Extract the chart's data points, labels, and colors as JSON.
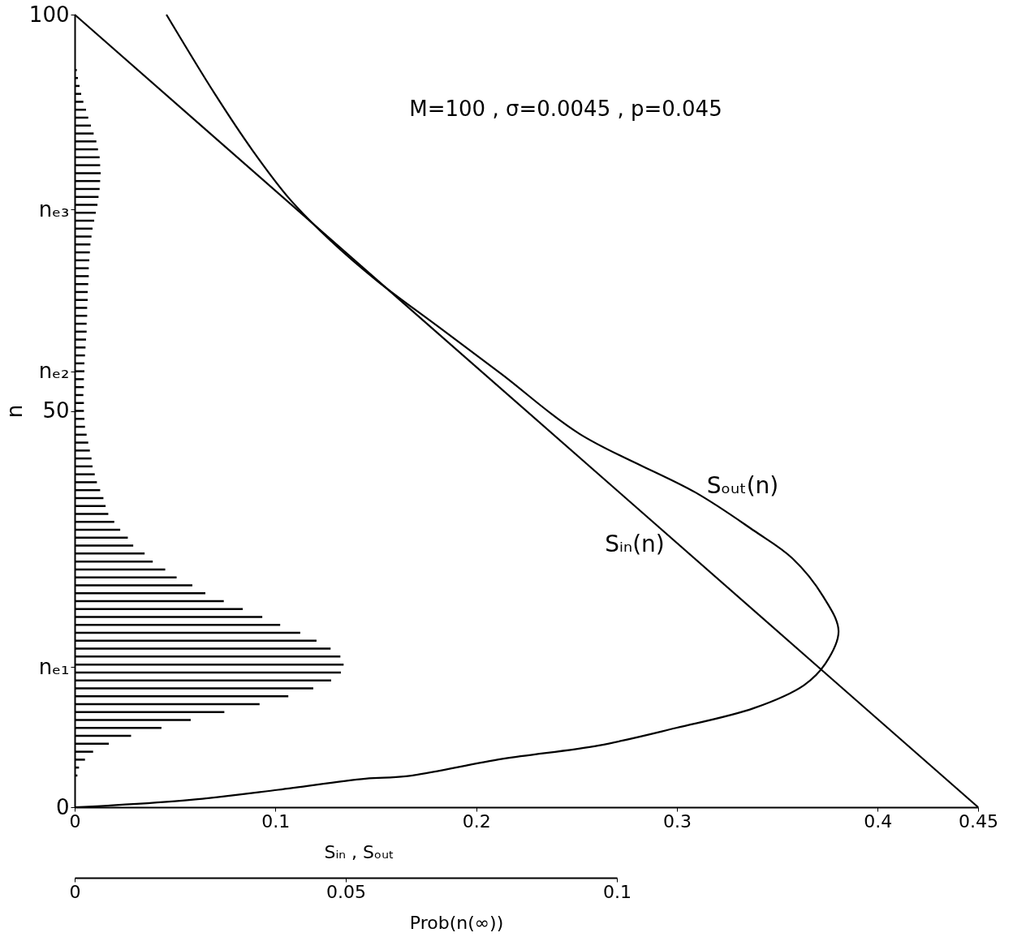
{
  "chart_data": {
    "type": "bar",
    "orientation": "horizontal",
    "xlabel": "Sᵢₙ , Sₒᵤₜ",
    "ylabel": "n",
    "x2label": "Prob(n(∞))",
    "annotations": [
      "M=100 , σ=0.0045 , p=0.045"
    ],
    "xlim": [
      0,
      0.45
    ],
    "xticks": [
      0,
      0.1,
      0.2,
      0.3,
      0.4,
      0.45
    ],
    "x2lim": [
      0,
      0.1
    ],
    "x2ticks": [
      0,
      0.05,
      0.1
    ],
    "ylim": [
      0,
      100
    ],
    "yticks": [
      0,
      {
        "value": 17.7,
        "label": "nₑ₁"
      },
      50,
      {
        "value": 55,
        "label": "nₑ₂"
      },
      {
        "value": 75.4,
        "label": "nₑ₃"
      },
      100
    ],
    "grid": false,
    "legend": false,
    "series": [
      {
        "name": "Sᵢₙ(n)",
        "type": "line",
        "color": "#000000",
        "x": [
          100,
          0
        ],
        "values": [
          0,
          0.45
        ]
      },
      {
        "name": "Sₒᵤₜ(n)",
        "type": "line",
        "color": "#000000",
        "values": [
          0,
          0.0166,
          0.057,
          0.1015,
          0.1448,
          0.165,
          0.2131,
          0.2612,
          0.2996,
          0.3383,
          0.3633,
          0.3739,
          0.3805,
          0.3728,
          0.3575,
          0.3383,
          0.3093,
          0.2515,
          0.2129,
          0.1818,
          0.1507,
          0.1274,
          0.1072,
          0.0885,
          0.0698,
          0.0457
        ],
        "x": [
          0,
          0.2,
          0.9,
          2.2,
          3.6,
          3.9,
          6.1,
          7.8,
          10.0,
          12.5,
          15.4,
          18.1,
          22.2,
          26.6,
          31.4,
          34.9,
          39.7,
          47.1,
          54.6,
          60.5,
          66.4,
          71.5,
          76.7,
          82.9,
          90.0,
          100
        ]
      },
      {
        "axis": "x2",
        "color": "#000000",
        "x": [
          4,
          5,
          6,
          7,
          8,
          9,
          10,
          11,
          12,
          13,
          14,
          15,
          16,
          17,
          18,
          19,
          20,
          21,
          22,
          23,
          24,
          25,
          26,
          27,
          28,
          29,
          30,
          31,
          32,
          33,
          34,
          35,
          36,
          37,
          38,
          39,
          40,
          41,
          42,
          43,
          44,
          45,
          46,
          47,
          48,
          49,
          50,
          51,
          52,
          53,
          54,
          55,
          56,
          57,
          58,
          59,
          60,
          61,
          62,
          63,
          64,
          65,
          66,
          67,
          68,
          69,
          70,
          71,
          72,
          73,
          74,
          75,
          76,
          77,
          78,
          79,
          80,
          81,
          82,
          83,
          84,
          85,
          86,
          87,
          88,
          89,
          90,
          91,
          92,
          93
        ],
        "values": [
          0.0005,
          0.0008,
          0.0019,
          0.0034,
          0.0063,
          0.0104,
          0.016,
          0.0214,
          0.0276,
          0.0341,
          0.0394,
          0.044,
          0.0473,
          0.0491,
          0.0496,
          0.049,
          0.0472,
          0.0446,
          0.0416,
          0.0379,
          0.0346,
          0.031,
          0.0275,
          0.0241,
          0.0217,
          0.0188,
          0.0167,
          0.0144,
          0.0129,
          0.0108,
          0.0098,
          0.0084,
          0.0073,
          0.0062,
          0.0057,
          0.0053,
          0.0047,
          0.0041,
          0.0037,
          0.0033,
          0.0031,
          0.0028,
          0.0025,
          0.0022,
          0.0019,
          0.0018,
          0.0017,
          0.0017,
          0.0016,
          0.0017,
          0.0017,
          0.0018,
          0.0018,
          0.0019,
          0.002,
          0.0021,
          0.0022,
          0.0022,
          0.0023,
          0.0023,
          0.0024,
          0.0024,
          0.0025,
          0.0026,
          0.0026,
          0.0027,
          0.0028,
          0.0029,
          0.0031,
          0.0033,
          0.0036,
          0.0039,
          0.0042,
          0.0044,
          0.0046,
          0.0047,
          0.0048,
          0.0047,
          0.0046,
          0.0043,
          0.004,
          0.0035,
          0.003,
          0.0025,
          0.0021,
          0.0016,
          0.0012,
          0.0009,
          0.0006,
          0.0004
        ]
      }
    ]
  }
}
